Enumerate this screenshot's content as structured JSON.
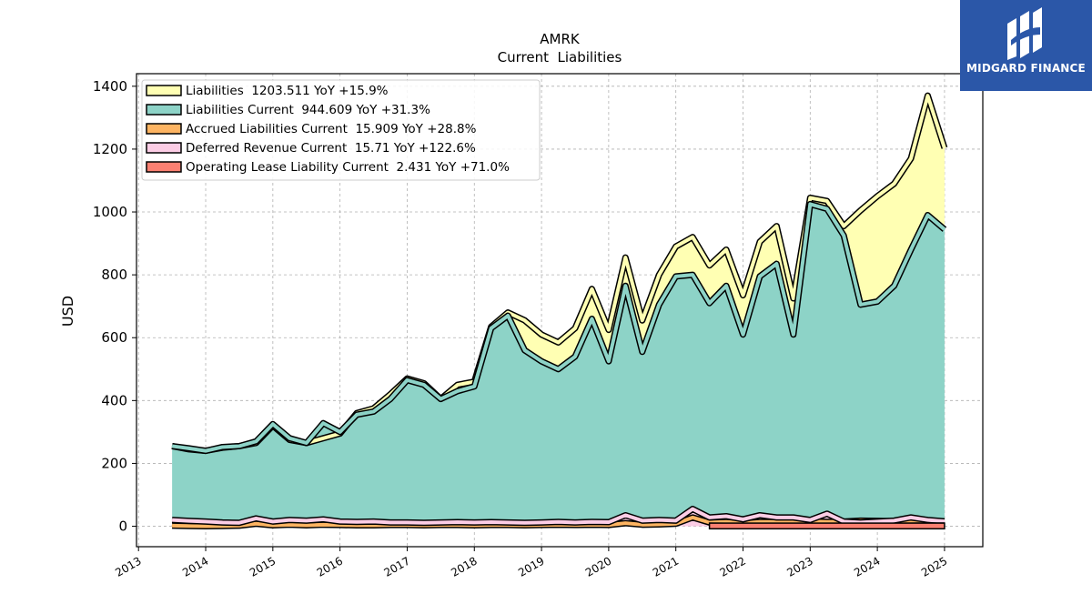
{
  "chart_data": {
    "type": "area",
    "title": "AMRK",
    "subtitle": "Current  Liabilities",
    "ylabel": "USD",
    "ylim": [
      -65,
      1440
    ],
    "xlim": [
      2012.97,
      2025.57
    ],
    "yticks": [
      0,
      200,
      400,
      600,
      800,
      1000,
      1200,
      1400
    ],
    "xticks": [
      2013,
      2014,
      2015,
      2016,
      2017,
      2018,
      2019,
      2020,
      2021,
      2022,
      2023,
      2024,
      2025
    ],
    "grid": true,
    "legend_position": "top-left",
    "series": [
      {
        "name": "Liabilities",
        "legend": "Liabilities  1203.511 YoY +15.9%",
        "color": "#ffffb3",
        "x": [
          2013.5,
          2013.75,
          2014.0,
          2014.25,
          2014.5,
          2014.75,
          2015.0,
          2015.25,
          2015.5,
          2015.75,
          2016.0,
          2016.25,
          2016.5,
          2016.75,
          2017.0,
          2017.25,
          2017.5,
          2017.75,
          2018.0,
          2018.25,
          2018.5,
          2018.75,
          2019.0,
          2019.25,
          2019.5,
          2019.75,
          2020.0,
          2020.25,
          2020.5,
          2020.75,
          2021.0,
          2021.25,
          2021.5,
          2021.75,
          2022.0,
          2022.25,
          2022.5,
          2022.75,
          2023.0,
          2023.25,
          2023.5,
          2023.75,
          2024.0,
          2024.25,
          2024.5,
          2024.75,
          2025.0
        ],
        "values": [
          255,
          245,
          240,
          250,
          255,
          265,
          320,
          275,
          265,
          280,
          295,
          360,
          375,
          420,
          470,
          455,
          405,
          450,
          460,
          635,
          680,
          655,
          610,
          585,
          630,
          755,
          625,
          855,
          655,
          800,
          890,
          920,
          830,
          880,
          735,
          905,
          955,
          725,
          1045,
          1035,
          955,
          1005,
          1050,
          1090,
          1170,
          1370,
          1203.511
        ]
      },
      {
        "name": "Liabilities Current",
        "legend": "Liabilities Current  944.609 YoY +31.3%",
        "color": "#8dd3c7",
        "x": [
          2013.5,
          2013.75,
          2014.0,
          2014.25,
          2014.5,
          2014.75,
          2015.0,
          2015.25,
          2015.5,
          2015.75,
          2016.0,
          2016.25,
          2016.5,
          2016.75,
          2017.0,
          2017.25,
          2017.5,
          2017.75,
          2018.0,
          2018.25,
          2018.5,
          2018.75,
          2019.0,
          2019.25,
          2019.5,
          2019.75,
          2020.0,
          2020.25,
          2020.5,
          2020.75,
          2021.0,
          2021.25,
          2021.5,
          2021.75,
          2022.0,
          2022.25,
          2022.5,
          2022.75,
          2023.0,
          2023.25,
          2023.5,
          2023.75,
          2024.0,
          2024.25,
          2024.5,
          2024.75,
          2025.0
        ],
        "values": [
          255,
          248,
          240,
          252,
          255,
          270,
          325,
          280,
          265,
          328,
          300,
          355,
          365,
          405,
          465,
          450,
          405,
          430,
          445,
          630,
          670,
          560,
          525,
          500,
          540,
          660,
          525,
          765,
          555,
          705,
          795,
          800,
          710,
          765,
          610,
          795,
          835,
          610,
          1025,
          1010,
          925,
          705,
          715,
          765,
          880,
          990,
          944.609
        ]
      },
      {
        "name": "Accrued Liabilities Current",
        "legend": "Accrued Liabilities Current  15.909 YoY +28.8%",
        "color": "#fdb462",
        "x": [
          2013.5,
          2013.75,
          2014.0,
          2014.25,
          2014.5,
          2014.75,
          2015.0,
          2015.25,
          2015.5,
          2015.75,
          2016.0,
          2016.25,
          2016.5,
          2016.75,
          2017.0,
          2017.25,
          2017.5,
          2017.75,
          2018.0,
          2018.25,
          2018.5,
          2018.75,
          2019.0,
          2019.25,
          2019.5,
          2019.75,
          2020.0,
          2020.25,
          2020.5,
          2020.75,
          2021.0,
          2021.25,
          2021.5,
          2021.75,
          2022.0,
          2022.25,
          2022.5,
          2022.75,
          2023.0,
          2023.25,
          2023.5,
          2023.75,
          2024.0,
          2024.25,
          2024.5,
          2024.75,
          2025.0
        ],
        "values": [
          2,
          1,
          0,
          1,
          2,
          8,
          3,
          5,
          3,
          5,
          4,
          3,
          3,
          4,
          4,
          3,
          4,
          4,
          3,
          4,
          4,
          3,
          4,
          5,
          4,
          5,
          4,
          10,
          5,
          6,
          8,
          28,
          12,
          14,
          10,
          14,
          14,
          15,
          16,
          14,
          15,
          18,
          17,
          16,
          14,
          12,
          15.909
        ]
      },
      {
        "name": "Deferred Revenue Current",
        "legend": "Deferred Revenue Current  15.71 YoY +122.6%",
        "color": "#fccde5",
        "x": [
          2013.5,
          2013.75,
          2014.0,
          2014.25,
          2014.5,
          2014.75,
          2015.0,
          2015.25,
          2015.5,
          2015.75,
          2016.0,
          2016.25,
          2016.5,
          2016.75,
          2017.0,
          2017.25,
          2017.5,
          2017.75,
          2018.0,
          2018.25,
          2018.5,
          2018.75,
          2019.0,
          2019.25,
          2019.5,
          2019.75,
          2020.0,
          2020.25,
          2020.5,
          2020.75,
          2021.0,
          2021.25,
          2021.5,
          2021.75,
          2022.0,
          2022.25,
          2022.5,
          2022.75,
          2023.0,
          2023.25,
          2023.5,
          2023.75,
          2024.0,
          2024.25,
          2024.5,
          2024.75,
          2025.0
        ],
        "values": [
          20,
          17,
          15,
          12,
          11,
          25,
          15,
          20,
          18,
          22,
          15,
          14,
          15,
          12,
          12,
          11,
          12,
          13,
          12,
          13,
          12,
          11,
          12,
          14,
          12,
          14,
          13,
          35,
          18,
          20,
          18,
          55,
          28,
          32,
          22,
          35,
          28,
          28,
          20,
          40,
          15,
          12,
          15,
          18,
          28,
          20,
          15.71
        ]
      },
      {
        "name": "Operating Lease Liability Current",
        "legend": "Operating Lease Liability Current  2.431 YoY +71.0%",
        "color": "#fb8072",
        "x": [
          2021.5,
          2021.75,
          2022.0,
          2022.25,
          2022.5,
          2022.75,
          2023.0,
          2023.25,
          2023.5,
          2023.75,
          2024.0,
          2024.25,
          2024.5,
          2024.75,
          2025.0
        ],
        "values": [
          1.8,
          1.7,
          1.7,
          1.6,
          1.6,
          1.5,
          1.5,
          1.4,
          1.4,
          1.4,
          1.4,
          1.5,
          1.8,
          2.2,
          2.431
        ]
      }
    ]
  },
  "brand": {
    "name": "MIDGARD FINANCE",
    "color": "#2b57a8"
  }
}
